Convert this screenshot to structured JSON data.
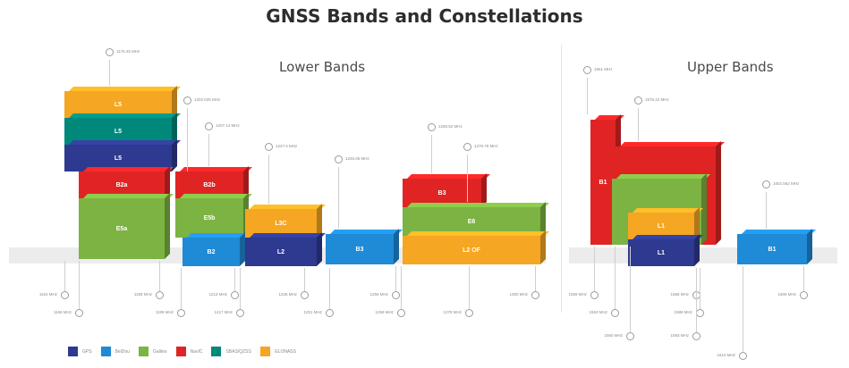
{
  "title": "GNSS Bands and Constellations",
  "sections": {
    "lower": "Lower Bands",
    "upper": "Upper Bands"
  },
  "colors": {
    "gps": "#2e3990",
    "beidou": "#1f8ad6",
    "galileo": "#7cb342",
    "navic": "#e02424",
    "sbas": "#00897b",
    "glonass": "#f5a623"
  },
  "blocks": [
    {
      "label": "L5",
      "color": "#f5a623"
    },
    {
      "label": "L5",
      "color": "#00897b"
    },
    {
      "label": "L5",
      "color": "#2e3990"
    },
    {
      "label": "B2a",
      "color": "#e02424"
    },
    {
      "label": "E5a",
      "color": "#7cb342"
    },
    {
      "label": "B2b",
      "color": "#e02424"
    },
    {
      "label": "E5b",
      "color": "#7cb342"
    },
    {
      "label": "B2",
      "color": "#1f8ad6"
    },
    {
      "label": "L3C",
      "color": "#f5a623"
    },
    {
      "label": "L2",
      "color": "#2e3990"
    },
    {
      "label": "B3",
      "color": "#1f8ad6"
    },
    {
      "label": "B3",
      "color": "#e02424"
    },
    {
      "label": "E6",
      "color": "#7cb342"
    },
    {
      "label": "L2 OF",
      "color": "#f5a623"
    },
    {
      "label": "B1",
      "color": "#e02424"
    },
    {
      "label": "B1C",
      "color": "#e02424"
    },
    {
      "label": "E1",
      "color": "#7cb342"
    },
    {
      "label": "L1",
      "color": "#f5a623"
    },
    {
      "label": "L1",
      "color": "#2e3990"
    },
    {
      "label": "B1",
      "color": "#1f8ad6"
    }
  ],
  "frequencies_top": [
    "1176.45 MHz",
    "1202.025 MHz",
    "1207.14 MHz",
    "1227.6 MHz",
    "1246.06 MHz",
    "1268.52 MHz",
    "1278.75 MHz",
    "1561 MHz",
    "1575.42 MHz",
    "1602.562 MHz"
  ],
  "frequencies_bottom": [
    "1164 MHz",
    "1166 MHz",
    "1188 MHz",
    "1189 MHz",
    "1213 MHz",
    "1217 MHz",
    "1236 MHz",
    "1251 MHz",
    "1256 MHz",
    "1258 MHz",
    "1278 MHz",
    "1300 MHz",
    "1559 MHz",
    "1563 MHz",
    "1560 MHz",
    "1588 MHz",
    "1589 MHz",
    "1593 MHz",
    "1610 MHz",
    "1606 MHz"
  ],
  "legend": [
    {
      "label": "GPS",
      "color": "#2e3990"
    },
    {
      "label": "BeiDou",
      "color": "#1f8ad6"
    },
    {
      "label": "Galileo",
      "color": "#7cb342"
    },
    {
      "label": "NavIC",
      "color": "#e02424"
    },
    {
      "label": "SBAS/QZSS",
      "color": "#00897b"
    },
    {
      "label": "GLONASS",
      "color": "#f5a623"
    }
  ]
}
